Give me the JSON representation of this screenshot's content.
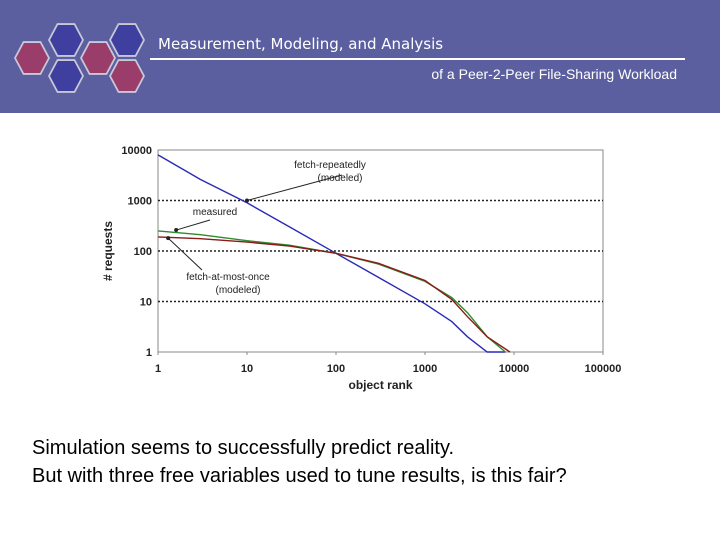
{
  "header": {
    "title": "Measurement, Modeling, and Analysis",
    "subtitle": "of a Peer-2-Peer File-Sharing Workload",
    "background": "#5b5f9f",
    "hex_colors": [
      "#9b3d6b",
      "#3f3fa0",
      "#9b3d6b",
      "#3f3fa0",
      "#3f3fa0",
      "#9b3d6b"
    ]
  },
  "chart_data": {
    "type": "line",
    "xlabel": "object rank",
    "ylabel": "# requests",
    "xscale": "log",
    "yscale": "log",
    "xlim": [
      1,
      100000
    ],
    "ylim": [
      1,
      10000
    ],
    "xticks": [
      "1",
      "10",
      "100",
      "1000",
      "10000",
      "100000"
    ],
    "yticks": [
      "1",
      "10",
      "100",
      "1000",
      "10000"
    ],
    "grid": "horizontal dotted",
    "series": [
      {
        "name": "fetch-repeatedly (modeled)",
        "color": "#2a2ab8",
        "points": [
          [
            1,
            8000
          ],
          [
            3,
            2600
          ],
          [
            10,
            900
          ],
          [
            30,
            300
          ],
          [
            100,
            90
          ],
          [
            300,
            30
          ],
          [
            1000,
            9
          ],
          [
            2000,
            4
          ],
          [
            3000,
            2
          ],
          [
            5000,
            1
          ],
          [
            8000,
            1
          ]
        ]
      },
      {
        "name": "measured",
        "color": "#2e8b2e",
        "points": [
          [
            1,
            250
          ],
          [
            3,
            210
          ],
          [
            10,
            160
          ],
          [
            30,
            130
          ],
          [
            100,
            90
          ],
          [
            300,
            55
          ],
          [
            1000,
            25
          ],
          [
            2000,
            12
          ],
          [
            3000,
            6
          ],
          [
            5000,
            2
          ],
          [
            8000,
            1
          ]
        ]
      },
      {
        "name": "fetch-at-most-once (modeled)",
        "color": "#8b1a1a",
        "points": [
          [
            1,
            190
          ],
          [
            3,
            175
          ],
          [
            10,
            150
          ],
          [
            30,
            125
          ],
          [
            100,
            90
          ],
          [
            300,
            57
          ],
          [
            1000,
            26
          ],
          [
            2000,
            11
          ],
          [
            3000,
            5
          ],
          [
            5000,
            2
          ],
          [
            9000,
            1
          ]
        ]
      }
    ],
    "annotations": [
      {
        "label": "fetch-repeatedly",
        "label2": "(modeled)",
        "target": [
          10,
          1000
        ]
      },
      {
        "label": "measured",
        "label2": "",
        "target": [
          1.6,
          260
        ]
      },
      {
        "label": "fetch-at-most-once",
        "label2": "(modeled)",
        "target": [
          1.3,
          180
        ]
      }
    ]
  },
  "caption": {
    "line1": "Simulation seems to successfully predict reality.",
    "line2": "But with three free variables used to tune results, is this fair?"
  }
}
